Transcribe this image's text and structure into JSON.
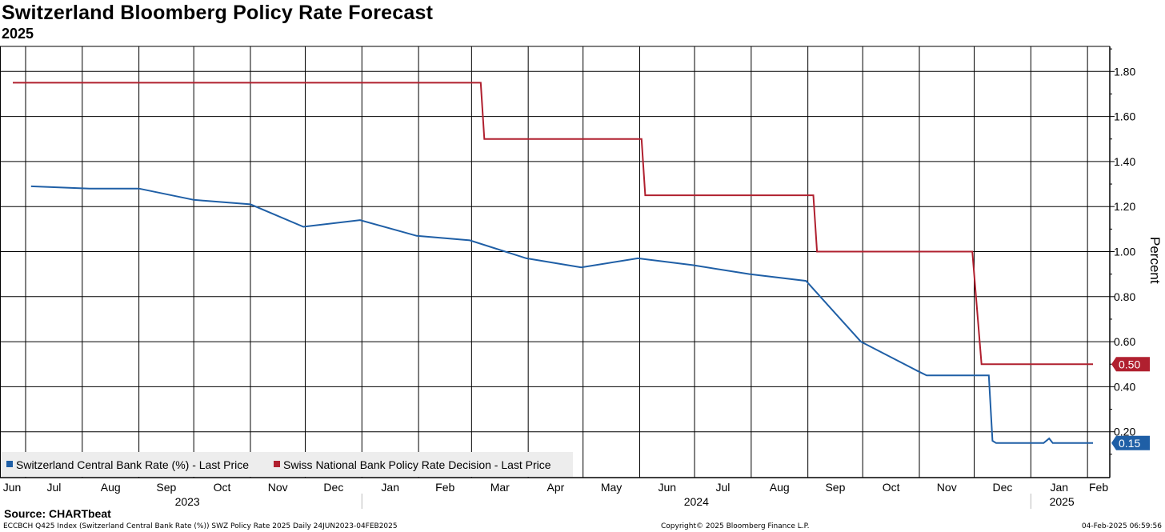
{
  "header": {
    "title": "Switzerland Bloomberg Policy Rate Forecast",
    "subtitle": "2025"
  },
  "source": "Source: CHARTbeat",
  "footer": {
    "left": "ECCBCH Q425 Index (Switzerland Central Bank Rate (%)) SWZ Policy Rate 2025  Daily 24JUN2023-04FEB2025",
    "center": "Copyright© 2025 Bloomberg Finance L.P.",
    "right": "04-Feb-2025 06:59:56"
  },
  "chart_data": {
    "type": "line",
    "ylabel": "Percent",
    "ylim": [
      0.0,
      1.9
    ],
    "y_ticks": [
      "0.20",
      "0.40",
      "0.60",
      "0.80",
      "1.00",
      "1.20",
      "1.40",
      "1.60",
      "1.80"
    ],
    "x_range": [
      "2023-06-24",
      "2025-02-04"
    ],
    "month_ticks": [
      {
        "label": "Jun",
        "date": "2023-06-01"
      },
      {
        "label": "Jul",
        "date": "2023-07-01"
      },
      {
        "label": "Aug",
        "date": "2023-08-01"
      },
      {
        "label": "Sep",
        "date": "2023-09-01"
      },
      {
        "label": "Oct",
        "date": "2023-10-01"
      },
      {
        "label": "Nov",
        "date": "2023-11-01"
      },
      {
        "label": "Dec",
        "date": "2023-12-01"
      },
      {
        "label": "Jan",
        "date": "2024-01-01"
      },
      {
        "label": "Feb",
        "date": "2024-02-01"
      },
      {
        "label": "Mar",
        "date": "2024-03-01"
      },
      {
        "label": "Apr",
        "date": "2024-04-01"
      },
      {
        "label": "May",
        "date": "2024-05-01"
      },
      {
        "label": "Jun",
        "date": "2024-06-01"
      },
      {
        "label": "Jul",
        "date": "2024-07-01"
      },
      {
        "label": "Aug",
        "date": "2024-08-01"
      },
      {
        "label": "Sep",
        "date": "2024-09-01"
      },
      {
        "label": "Oct",
        "date": "2024-10-01"
      },
      {
        "label": "Nov",
        "date": "2024-11-01"
      },
      {
        "label": "Dec",
        "date": "2024-12-01"
      },
      {
        "label": "Jan",
        "date": "2025-01-01"
      },
      {
        "label": "Feb",
        "date": "2025-02-01"
      }
    ],
    "year_labels": [
      {
        "label": "2023",
        "from": "2023-06-24",
        "to": "2024-01-01"
      },
      {
        "label": "2024",
        "from": "2024-01-01",
        "to": "2025-01-01"
      },
      {
        "label": "2025",
        "from": "2025-01-01",
        "to": "2025-02-04"
      }
    ],
    "grid": true,
    "legend_position": "bottom-left",
    "series": [
      {
        "name": "Switzerland Central Bank Rate (%) - Last Price",
        "color": "#1f5fa6",
        "last_value": "0.15",
        "points": [
          [
            "2023-07-04",
            1.29
          ],
          [
            "2023-08-05",
            1.28
          ],
          [
            "2023-09-01",
            1.28
          ],
          [
            "2023-10-01",
            1.23
          ],
          [
            "2023-11-01",
            1.21
          ],
          [
            "2023-11-30",
            1.11
          ],
          [
            "2023-12-31",
            1.14
          ],
          [
            "2024-01-31",
            1.07
          ],
          [
            "2024-02-29",
            1.05
          ],
          [
            "2024-03-31",
            0.97
          ],
          [
            "2024-04-30",
            0.93
          ],
          [
            "2024-05-31",
            0.97
          ],
          [
            "2024-06-30",
            0.94
          ],
          [
            "2024-07-31",
            0.9
          ],
          [
            "2024-08-31",
            0.87
          ],
          [
            "2024-09-30",
            0.6
          ],
          [
            "2024-10-31",
            0.47
          ],
          [
            "2024-11-05",
            0.45
          ],
          [
            "2024-12-09",
            0.45
          ],
          [
            "2024-12-11",
            0.16
          ],
          [
            "2024-12-13",
            0.15
          ],
          [
            "2025-01-08",
            0.15
          ],
          [
            "2025-01-11",
            0.17
          ],
          [
            "2025-01-13",
            0.15
          ],
          [
            "2025-02-04",
            0.15
          ]
        ]
      },
      {
        "name": "Swiss National Bank Policy Rate Decision - Last Price",
        "color": "#b0202f",
        "last_value": "0.50",
        "points": [
          [
            "2023-06-24",
            1.75
          ],
          [
            "2024-03-06",
            1.75
          ],
          [
            "2024-03-08",
            1.5
          ],
          [
            "2024-06-02",
            1.5
          ],
          [
            "2024-06-04",
            1.25
          ],
          [
            "2024-09-04",
            1.25
          ],
          [
            "2024-09-06",
            1.0
          ],
          [
            "2024-11-30",
            1.0
          ],
          [
            "2024-12-05",
            0.5
          ],
          [
            "2025-02-04",
            0.5
          ]
        ]
      }
    ]
  }
}
